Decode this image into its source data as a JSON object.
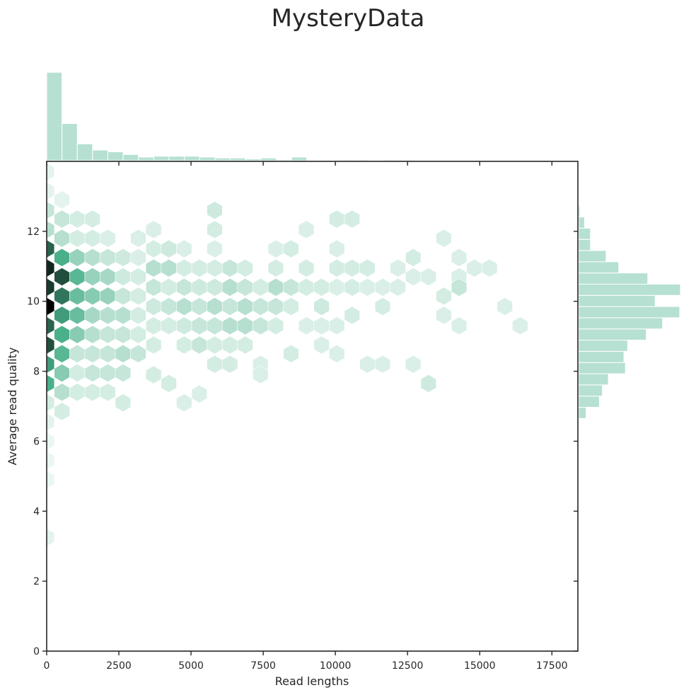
{
  "chart_data": {
    "type": "hexbin-jointplot",
    "title": "MysteryData",
    "xlabel": "Read lengths",
    "ylabel": "Average read quality",
    "xlim": [
      0,
      18400
    ],
    "ylim": [
      0,
      14
    ],
    "xticks": [
      0,
      2500,
      5000,
      7500,
      10000,
      12500,
      15000,
      17500
    ],
    "xtick_labels": [
      "0",
      "2500",
      "5000",
      "7500",
      "10000",
      "12500",
      "15000",
      "17500"
    ],
    "yticks": [
      0,
      2,
      4,
      6,
      8,
      10,
      12
    ],
    "ytick_labels": [
      "0",
      "2",
      "4",
      "6",
      "8",
      "10",
      "12"
    ],
    "grid": false,
    "colors": {
      "hex_max": "#000000",
      "hex_mid": "#4ab08a",
      "hex_min": "#f3faf7",
      "hist": "#b6e0d2",
      "axis": "#262626"
    },
    "hexbin": {
      "x_centers": [
        0,
        529,
        1058,
        1587,
        2116,
        2645,
        3174,
        3703,
        4232,
        4761,
        5290,
        5819,
        6348,
        6877,
        7406,
        7935,
        8464,
        8993,
        9522,
        10051,
        10580,
        11109,
        11638,
        12167,
        12696,
        13225,
        13754,
        14283,
        14812,
        15341,
        15870,
        16399,
        16928
      ],
      "points": [
        [
          0,
          13.7,
          0.05
        ],
        [
          0,
          13.15,
          0.05
        ],
        [
          0,
          12.6,
          0.15
        ],
        [
          0,
          12.05,
          0.2
        ],
        [
          0,
          11.5,
          0.75
        ],
        [
          0,
          10.95,
          0.9
        ],
        [
          0,
          10.4,
          0.85
        ],
        [
          0,
          9.85,
          1.0
        ],
        [
          0,
          9.3,
          0.75
        ],
        [
          0,
          8.75,
          0.8
        ],
        [
          0,
          8.2,
          0.6
        ],
        [
          0,
          7.65,
          0.55
        ],
        [
          0,
          7.1,
          0.1
        ],
        [
          0,
          6.55,
          0.05
        ],
        [
          0,
          6.0,
          0.03
        ],
        [
          0,
          5.45,
          0.03
        ],
        [
          0,
          4.9,
          0.03
        ],
        [
          0,
          3.25,
          0.05
        ],
        [
          529,
          12.9,
          0.05
        ],
        [
          529,
          12.35,
          0.15
        ],
        [
          529,
          11.8,
          0.2
        ],
        [
          529,
          11.25,
          0.55
        ],
        [
          529,
          10.7,
          0.8
        ],
        [
          529,
          10.15,
          0.7
        ],
        [
          529,
          9.6,
          0.6
        ],
        [
          529,
          9.05,
          0.55
        ],
        [
          529,
          8.5,
          0.5
        ],
        [
          529,
          7.95,
          0.35
        ],
        [
          529,
          7.4,
          0.2
        ],
        [
          529,
          6.85,
          0.1
        ],
        [
          1058,
          12.35,
          0.1
        ],
        [
          1058,
          11.8,
          0.1
        ],
        [
          1058,
          11.25,
          0.3
        ],
        [
          1058,
          10.7,
          0.5
        ],
        [
          1058,
          10.15,
          0.45
        ],
        [
          1058,
          9.6,
          0.45
        ],
        [
          1058,
          9.05,
          0.35
        ],
        [
          1058,
          8.5,
          0.15
        ],
        [
          1058,
          7.95,
          0.1
        ],
        [
          1058,
          7.4,
          0.1
        ],
        [
          1587,
          12.35,
          0.1
        ],
        [
          1587,
          11.8,
          0.1
        ],
        [
          1587,
          11.25,
          0.2
        ],
        [
          1587,
          10.7,
          0.3
        ],
        [
          1587,
          10.15,
          0.35
        ],
        [
          1587,
          9.6,
          0.25
        ],
        [
          1587,
          9.05,
          0.2
        ],
        [
          1587,
          8.5,
          0.15
        ],
        [
          1587,
          7.95,
          0.15
        ],
        [
          1587,
          7.4,
          0.1
        ],
        [
          2116,
          11.8,
          0.08
        ],
        [
          2116,
          11.25,
          0.15
        ],
        [
          2116,
          10.7,
          0.25
        ],
        [
          2116,
          10.15,
          0.3
        ],
        [
          2116,
          9.6,
          0.2
        ],
        [
          2116,
          9.05,
          0.15
        ],
        [
          2116,
          8.5,
          0.15
        ],
        [
          2116,
          7.95,
          0.15
        ],
        [
          2116,
          7.4,
          0.1
        ],
        [
          2645,
          11.25,
          0.12
        ],
        [
          2645,
          10.7,
          0.12
        ],
        [
          2645,
          10.15,
          0.15
        ],
        [
          2645,
          9.6,
          0.2
        ],
        [
          2645,
          9.05,
          0.15
        ],
        [
          2645,
          8.5,
          0.2
        ],
        [
          2645,
          7.95,
          0.15
        ],
        [
          2645,
          7.1,
          0.1
        ],
        [
          3174,
          11.8,
          0.08
        ],
        [
          3174,
          11.25,
          0.08
        ],
        [
          3174,
          10.7,
          0.1
        ],
        [
          3174,
          10.15,
          0.1
        ],
        [
          3174,
          9.6,
          0.1
        ],
        [
          3174,
          9.05,
          0.1
        ],
        [
          3174,
          8.5,
          0.15
        ],
        [
          3703,
          12.05,
          0.08
        ],
        [
          3703,
          11.5,
          0.1
        ],
        [
          3703,
          10.95,
          0.2
        ],
        [
          3703,
          10.4,
          0.15
        ],
        [
          3703,
          9.85,
          0.12
        ],
        [
          3703,
          9.3,
          0.1
        ],
        [
          3703,
          8.75,
          0.1
        ],
        [
          3703,
          7.9,
          0.1
        ],
        [
          4232,
          11.5,
          0.12
        ],
        [
          4232,
          10.95,
          0.2
        ],
        [
          4232,
          10.4,
          0.1
        ],
        [
          4232,
          9.85,
          0.15
        ],
        [
          4232,
          9.3,
          0.1
        ],
        [
          4232,
          7.65,
          0.1
        ],
        [
          4761,
          11.5,
          0.08
        ],
        [
          4761,
          10.95,
          0.1
        ],
        [
          4761,
          10.4,
          0.15
        ],
        [
          4761,
          9.85,
          0.2
        ],
        [
          4761,
          9.3,
          0.12
        ],
        [
          4761,
          8.75,
          0.1
        ],
        [
          4761,
          7.1,
          0.08
        ],
        [
          5290,
          10.95,
          0.1
        ],
        [
          5290,
          10.4,
          0.12
        ],
        [
          5290,
          9.85,
          0.15
        ],
        [
          5290,
          9.3,
          0.15
        ],
        [
          5290,
          8.75,
          0.15
        ],
        [
          5290,
          7.35,
          0.08
        ],
        [
          5819,
          12.05,
          0.1
        ],
        [
          5819,
          11.5,
          0.08
        ],
        [
          5819,
          10.95,
          0.1
        ],
        [
          5819,
          10.4,
          0.12
        ],
        [
          5819,
          9.85,
          0.2
        ],
        [
          5819,
          9.3,
          0.15
        ],
        [
          5819,
          8.75,
          0.1
        ],
        [
          5819,
          8.2,
          0.1
        ],
        [
          5819,
          12.6,
          0.12
        ],
        [
          6348,
          10.95,
          0.15
        ],
        [
          6348,
          10.4,
          0.2
        ],
        [
          6348,
          9.85,
          0.15
        ],
        [
          6348,
          9.3,
          0.2
        ],
        [
          6348,
          8.75,
          0.1
        ],
        [
          6348,
          8.2,
          0.1
        ],
        [
          6877,
          10.95,
          0.1
        ],
        [
          6877,
          10.4,
          0.15
        ],
        [
          6877,
          9.85,
          0.2
        ],
        [
          6877,
          9.3,
          0.2
        ],
        [
          6877,
          8.75,
          0.1
        ],
        [
          7406,
          10.4,
          0.1
        ],
        [
          7406,
          9.85,
          0.15
        ],
        [
          7406,
          9.3,
          0.15
        ],
        [
          7406,
          8.2,
          0.08
        ],
        [
          7406,
          7.9,
          0.08
        ],
        [
          7935,
          11.5,
          0.08
        ],
        [
          7935,
          10.95,
          0.1
        ],
        [
          7935,
          10.4,
          0.2
        ],
        [
          7935,
          9.85,
          0.15
        ],
        [
          7935,
          9.3,
          0.1
        ],
        [
          8464,
          11.5,
          0.1
        ],
        [
          8464,
          10.4,
          0.15
        ],
        [
          8464,
          9.85,
          0.1
        ],
        [
          8464,
          8.5,
          0.1
        ],
        [
          8993,
          12.05,
          0.08
        ],
        [
          8993,
          10.95,
          0.1
        ],
        [
          8993,
          10.4,
          0.1
        ],
        [
          8993,
          9.3,
          0.08
        ],
        [
          9522,
          10.4,
          0.1
        ],
        [
          9522,
          9.85,
          0.12
        ],
        [
          9522,
          9.3,
          0.08
        ],
        [
          9522,
          8.75,
          0.08
        ],
        [
          10051,
          12.35,
          0.1
        ],
        [
          10051,
          11.5,
          0.08
        ],
        [
          10051,
          10.95,
          0.1
        ],
        [
          10051,
          10.4,
          0.08
        ],
        [
          10051,
          9.3,
          0.08
        ],
        [
          10051,
          8.5,
          0.08
        ],
        [
          10580,
          12.35,
          0.1
        ],
        [
          10580,
          10.95,
          0.1
        ],
        [
          10580,
          10.4,
          0.1
        ],
        [
          10580,
          9.6,
          0.1
        ],
        [
          11109,
          10.95,
          0.1
        ],
        [
          11109,
          10.4,
          0.08
        ],
        [
          11109,
          8.2,
          0.08
        ],
        [
          11638,
          10.4,
          0.08
        ],
        [
          11638,
          9.85,
          0.1
        ],
        [
          11638,
          8.2,
          0.08
        ],
        [
          12167,
          10.95,
          0.08
        ],
        [
          12167,
          10.4,
          0.08
        ],
        [
          12696,
          11.25,
          0.1
        ],
        [
          12696,
          10.7,
          0.08
        ],
        [
          12696,
          8.2,
          0.08
        ],
        [
          13225,
          10.7,
          0.08
        ],
        [
          13225,
          7.65,
          0.12
        ],
        [
          13754,
          11.8,
          0.08
        ],
        [
          13754,
          10.15,
          0.1
        ],
        [
          13754,
          9.6,
          0.08
        ],
        [
          14283,
          11.25,
          0.08
        ],
        [
          14283,
          10.7,
          0.08
        ],
        [
          14283,
          10.4,
          0.15
        ],
        [
          14283,
          9.3,
          0.08
        ],
        [
          14812,
          10.95,
          0.08
        ],
        [
          15341,
          10.95,
          0.08
        ],
        [
          15870,
          9.85,
          0.08
        ],
        [
          16399,
          9.3,
          0.08
        ]
      ]
    },
    "x_marginal": {
      "bin_edges": [
        0,
        530,
        1060,
        1590,
        2120,
        2650,
        3180,
        3710,
        4240,
        4770,
        5300,
        5830,
        6360,
        6890,
        7420,
        7950,
        8480,
        9010,
        9540,
        10070,
        10600,
        11130,
        11660,
        12190,
        12720
      ],
      "counts": [
        100,
        42,
        19,
        12,
        10,
        7,
        4,
        5,
        5,
        5,
        4,
        3,
        3,
        2,
        3,
        1,
        4,
        0,
        0,
        1,
        1,
        0,
        1,
        1
      ]
    },
    "y_marginal": {
      "bin_edges": [
        6.3,
        6.65,
        6.97,
        7.29,
        7.61,
        7.93,
        8.25,
        8.57,
        8.89,
        9.21,
        9.53,
        9.85,
        10.17,
        10.49,
        10.81,
        11.13,
        11.45,
        11.77,
        12.09,
        12.41,
        12.73,
        13.0
      ],
      "counts": [
        1,
        10,
        28,
        32,
        40,
        63,
        61,
        66,
        91,
        113,
        136,
        103,
        137,
        93,
        54,
        37,
        16,
        16,
        8,
        2,
        0
      ]
    }
  }
}
